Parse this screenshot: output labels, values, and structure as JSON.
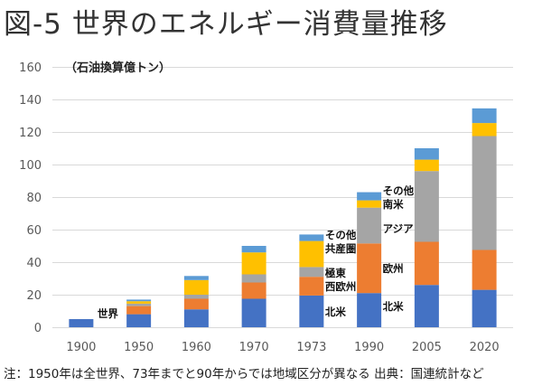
{
  "chart_data": {
    "type": "bar",
    "stacked": true,
    "title": "図-5 世界のエネルギー消費量推移",
    "unit_label": "（石油換算億トン）",
    "footnote": "注：1950年は全世界、73年までと90年からでは地域区分が異なる 出典：国連統計など",
    "ylim": [
      0,
      160
    ],
    "yticks": [
      0,
      20,
      40,
      60,
      80,
      100,
      120,
      140,
      160
    ],
    "grid": true,
    "categories": [
      "1900",
      "1950",
      "1960",
      "1970",
      "1973",
      "1990",
      "2005",
      "2020"
    ],
    "series": [
      {
        "name": "北米",
        "color": "#4472c4",
        "values": [
          5,
          8,
          11,
          17.5,
          19.5,
          21,
          26,
          23
        ]
      },
      {
        "name": "欧州",
        "color": "#ed7d31",
        "values": [
          0,
          5,
          6.5,
          10,
          11.5,
          30.5,
          26.5,
          24.5
        ]
      },
      {
        "name": "アジア",
        "color": "#a5a5a5",
        "values": [
          0,
          1.5,
          2.5,
          5,
          6,
          22,
          43.5,
          70
        ]
      },
      {
        "name": "その他・共産圏",
        "color": "#ffc000",
        "values": [
          0,
          1.5,
          9,
          13.5,
          16,
          4.5,
          7,
          8
        ]
      },
      {
        "name": "その他",
        "color": "#5b9bd5",
        "values": [
          0,
          1,
          2.5,
          4,
          4,
          5,
          7,
          9
        ]
      }
    ],
    "annotations": [
      "世界",
      "その他",
      "共産圏",
      "極東",
      "西欧州",
      "北米",
      "その他",
      "南米",
      "アジア",
      "欧州",
      "北米"
    ]
  }
}
